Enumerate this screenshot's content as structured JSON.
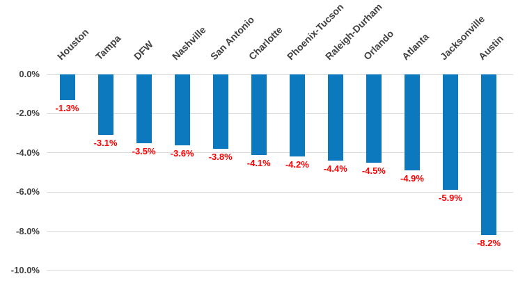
{
  "chart_data": {
    "type": "bar",
    "title": "",
    "xlabel": "",
    "ylabel": "",
    "categories": [
      "Houston",
      "Tampa",
      "DFW",
      "Nashville",
      "San Antonio",
      "Charlotte",
      "Phoenix-Tucson",
      "Raleigh-Durham",
      "Orlando",
      "Atlanta",
      "Jacksonville",
      "Austin"
    ],
    "values": [
      -1.3,
      -3.1,
      -3.5,
      -3.6,
      -3.8,
      -4.1,
      -4.2,
      -4.4,
      -4.5,
      -4.9,
      -5.9,
      -8.2
    ],
    "data_labels": [
      "-1.3%",
      "-3.1%",
      "-3.5%",
      "-3.6%",
      "-3.8%",
      "-4.1%",
      "-4.2%",
      "-4.4%",
      "-4.5%",
      "-4.9%",
      "-5.9%",
      "-8.2%"
    ],
    "y_ticks": {
      "labels": [
        "0.0%",
        "-2.0%",
        "-4.0%",
        "-6.0%",
        "-8.0%",
        "-10.0%"
      ],
      "values": [
        0,
        -2,
        -4,
        -6,
        -8,
        -10
      ]
    },
    "ylim": [
      -10,
      0
    ],
    "grid": "horizontal",
    "legend": "none",
    "colors": {
      "bar": "#0c78be",
      "value_label": "#ff0000",
      "axis_text": "#404040",
      "gridline": "#d9d9d9",
      "background": "#ffffff"
    }
  }
}
